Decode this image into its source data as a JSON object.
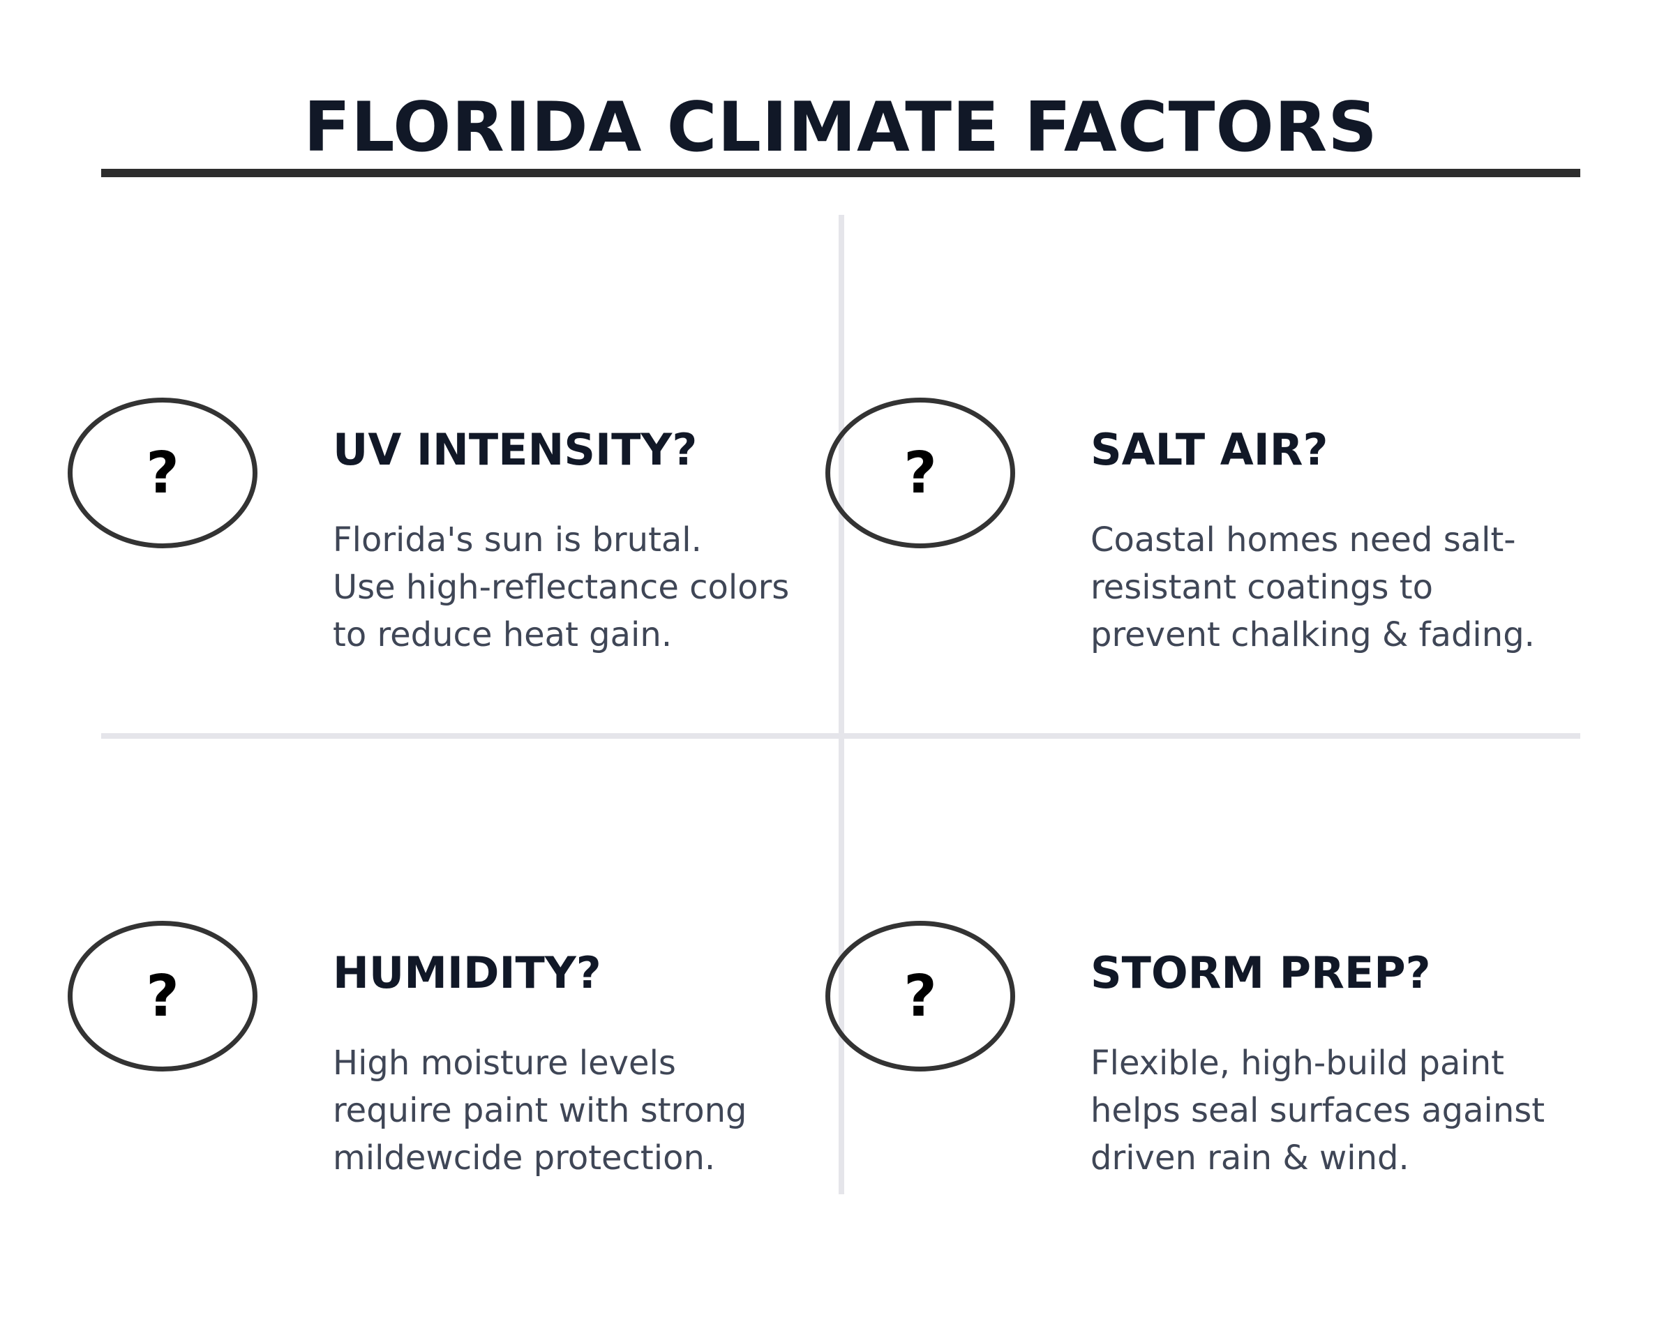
{
  "title": "FLORIDA CLIMATE FACTORS",
  "colors": {
    "heading": "#111827",
    "body_text": "#3f4656",
    "title_rule": "#2d2d2d",
    "grid_lines": "#e5e5ea",
    "badge_border": "#333333"
  },
  "factors": [
    {
      "badge": "?",
      "heading": "UV INTENSITY?",
      "lines": [
        "Florida's sun is brutal.",
        "Use high-reflectance colors",
        "to reduce heat gain."
      ]
    },
    {
      "badge": "?",
      "heading": "SALT AIR?",
      "lines": [
        "Coastal homes need salt-",
        "resistant coatings to",
        "prevent chalking & fading."
      ]
    },
    {
      "badge": "?",
      "heading": "HUMIDITY?",
      "lines": [
        "High moisture levels",
        "require paint with strong",
        "mildewcide protection."
      ]
    },
    {
      "badge": "?",
      "heading": "STORM PREP?",
      "lines": [
        "Flexible, high-build paint",
        "helps seal surfaces against",
        "driven rain & wind."
      ]
    }
  ]
}
